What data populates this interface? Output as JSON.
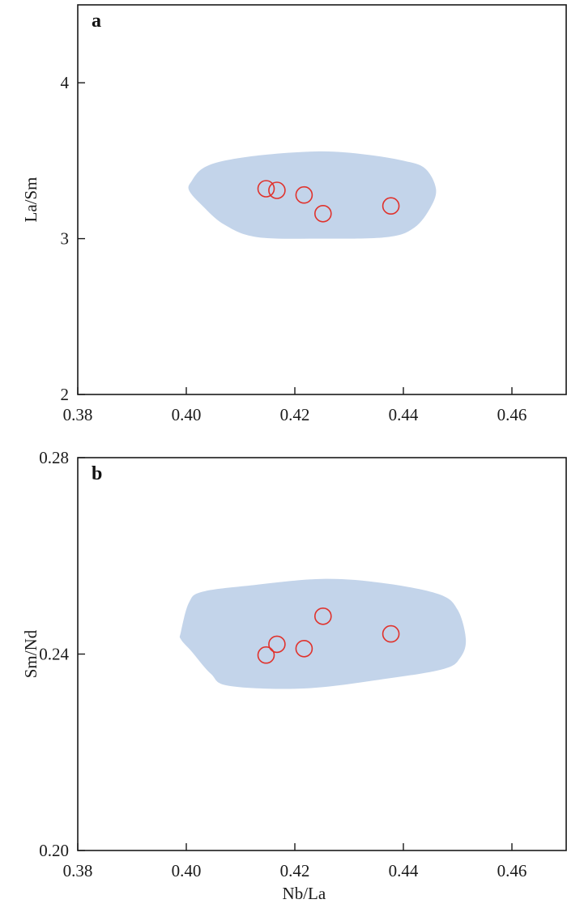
{
  "chart_data": [
    {
      "type": "scatter",
      "panel_label": "a",
      "xlabel": "",
      "ylabel": "La/Sm",
      "xlim": [
        0.38,
        0.47
      ],
      "ylim": [
        2,
        4.5
      ],
      "xticks": [
        0.38,
        0.4,
        0.42,
        0.44,
        0.46
      ],
      "xtick_labels": [
        "0.38",
        "0.40",
        "0.42",
        "0.44",
        "0.46"
      ],
      "yticks": [
        2,
        3,
        4
      ],
      "ytick_labels": [
        "2",
        "3",
        "4"
      ],
      "grid": false,
      "field_color": "#c3d4ea",
      "marker_color": "#e0322c",
      "field_outline": [
        [
          0.401,
          3.37
        ],
        [
          0.403,
          3.45
        ],
        [
          0.407,
          3.5
        ],
        [
          0.415,
          3.54
        ],
        [
          0.425,
          3.56
        ],
        [
          0.433,
          3.54
        ],
        [
          0.44,
          3.5
        ],
        [
          0.444,
          3.45
        ],
        [
          0.446,
          3.32
        ],
        [
          0.445,
          3.2
        ],
        [
          0.442,
          3.07
        ],
        [
          0.437,
          3.01
        ],
        [
          0.425,
          3.0
        ],
        [
          0.413,
          3.01
        ],
        [
          0.407,
          3.09
        ],
        [
          0.403,
          3.21
        ],
        [
          0.4005,
          3.31
        ]
      ],
      "points": [
        {
          "x": 0.4147,
          "y": 3.32
        },
        {
          "x": 0.4167,
          "y": 3.31
        },
        {
          "x": 0.4217,
          "y": 3.28
        },
        {
          "x": 0.4252,
          "y": 3.16
        },
        {
          "x": 0.4377,
          "y": 3.21
        }
      ]
    },
    {
      "type": "scatter",
      "panel_label": "b",
      "xlabel": "Nb/La",
      "ylabel": "Sm/Nd",
      "xlim": [
        0.38,
        0.47
      ],
      "ylim": [
        0.2,
        0.28
      ],
      "xticks": [
        0.38,
        0.4,
        0.42,
        0.44,
        0.46
      ],
      "xtick_labels": [
        "0.38",
        "0.40",
        "0.42",
        "0.44",
        "0.46"
      ],
      "yticks": [
        0.2,
        0.24,
        0.28
      ],
      "ytick_labels": [
        "0.20",
        "0.24",
        "0.28"
      ],
      "grid": false,
      "field_color": "#c3d4ea",
      "marker_color": "#e0322c",
      "field_outline": [
        [
          0.399,
          0.2445
        ],
        [
          0.4005,
          0.2505
        ],
        [
          0.403,
          0.2527
        ],
        [
          0.412,
          0.254
        ],
        [
          0.425,
          0.2553
        ],
        [
          0.436,
          0.2545
        ],
        [
          0.4465,
          0.2522
        ],
        [
          0.45,
          0.249
        ],
        [
          0.4515,
          0.243
        ],
        [
          0.4505,
          0.2393
        ],
        [
          0.4475,
          0.237
        ],
        [
          0.437,
          0.235
        ],
        [
          0.422,
          0.233
        ],
        [
          0.408,
          0.2335
        ],
        [
          0.4045,
          0.236
        ],
        [
          0.401,
          0.2405
        ],
        [
          0.399,
          0.243
        ]
      ],
      "points": [
        {
          "x": 0.4147,
          "y": 0.2398
        },
        {
          "x": 0.4167,
          "y": 0.242
        },
        {
          "x": 0.4217,
          "y": 0.2411
        },
        {
          "x": 0.4252,
          "y": 0.2477
        },
        {
          "x": 0.4377,
          "y": 0.2441
        }
      ]
    }
  ]
}
